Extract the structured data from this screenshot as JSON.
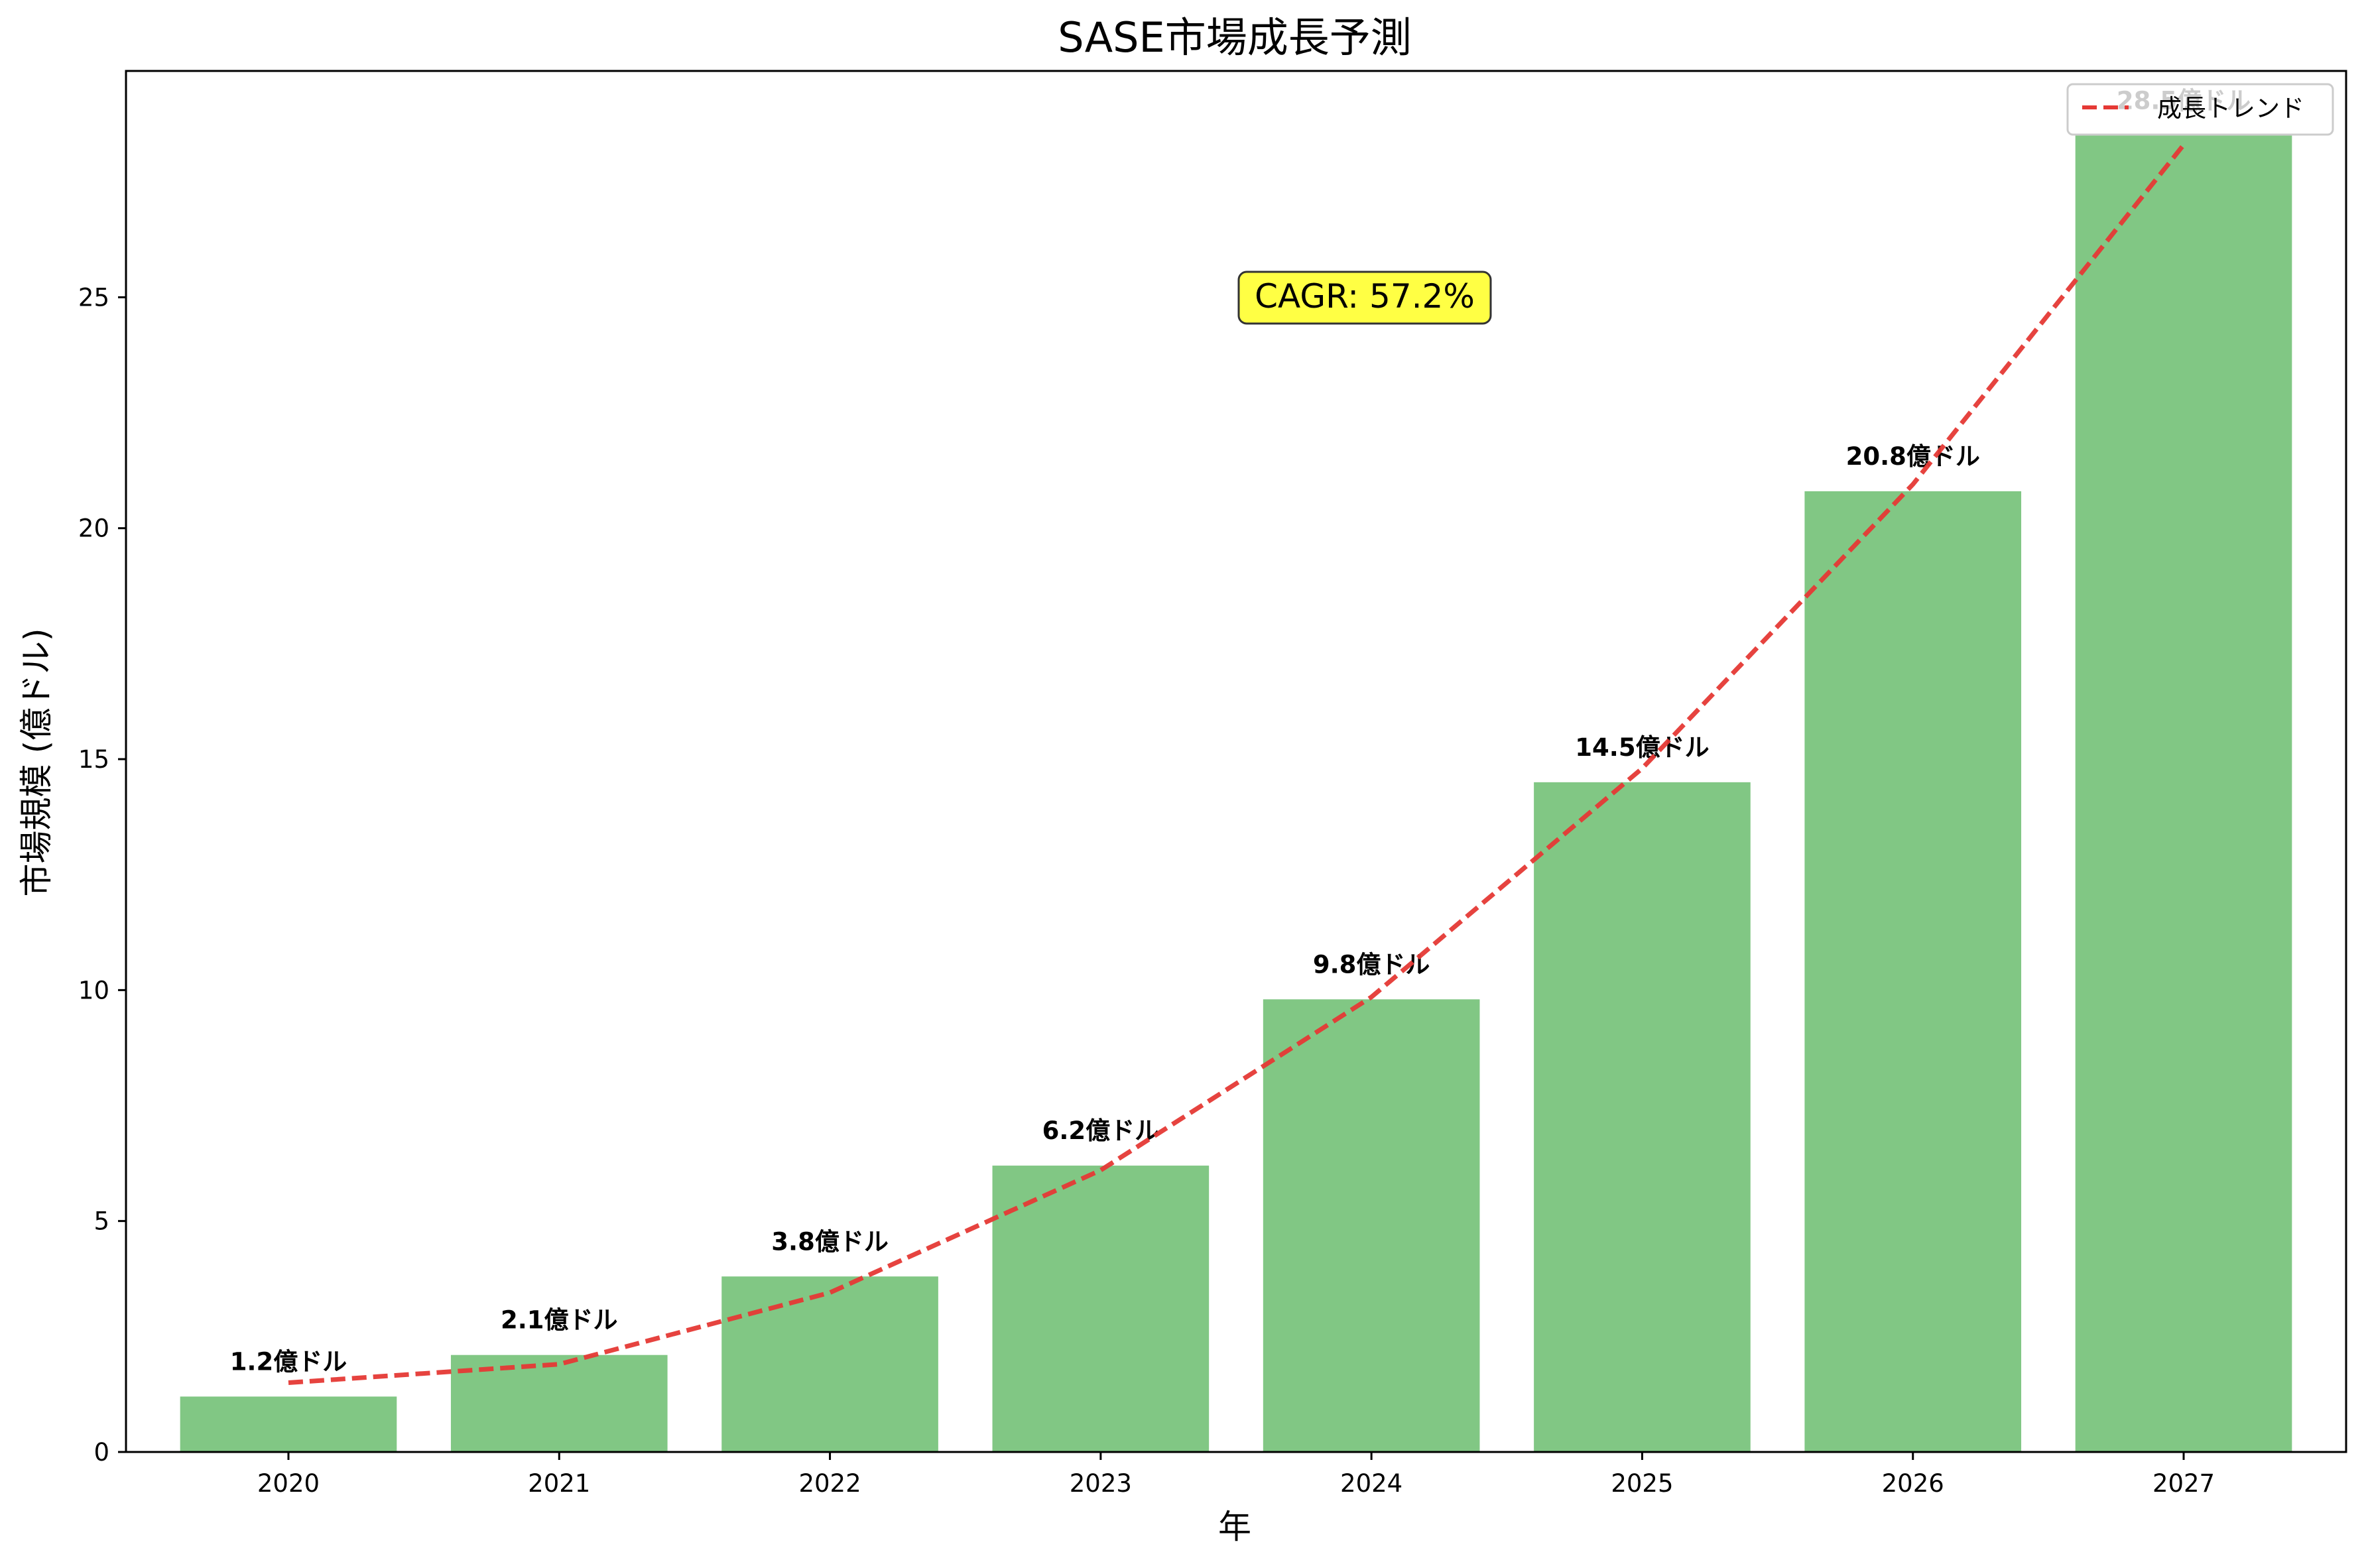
{
  "chart_data": {
    "type": "bar",
    "title": "SASE市場成長予測",
    "xlabel": "年",
    "ylabel": "市場規模 (億ドル)",
    "categories": [
      "2020",
      "2021",
      "2022",
      "2023",
      "2024",
      "2025",
      "2026",
      "2027"
    ],
    "values": [
      1.2,
      2.1,
      3.8,
      6.2,
      9.8,
      14.5,
      20.8,
      28.5
    ],
    "data_labels": [
      "1.2億ドル",
      "2.1億ドル",
      "3.8億ドル",
      "6.2億ドル",
      "9.8億ドル",
      "14.5億ドル",
      "20.8億ドル",
      "28.5億ドル"
    ],
    "ylim": [
      0,
      29.9
    ],
    "yticks": [
      0,
      5,
      10,
      15,
      20,
      25
    ],
    "bar_color": "#81c784",
    "trend": {
      "name": "成長トレンド",
      "type": "line",
      "style": "dashed",
      "color": "#e53935",
      "values": [
        1.5,
        1.9,
        3.45,
        6.1,
        9.85,
        14.8,
        20.95,
        28.3
      ]
    },
    "annotation": {
      "text": "CAGR: 57.2%",
      "background": "#ffff44"
    },
    "legend": {
      "position": "top-right"
    },
    "grid": false
  }
}
